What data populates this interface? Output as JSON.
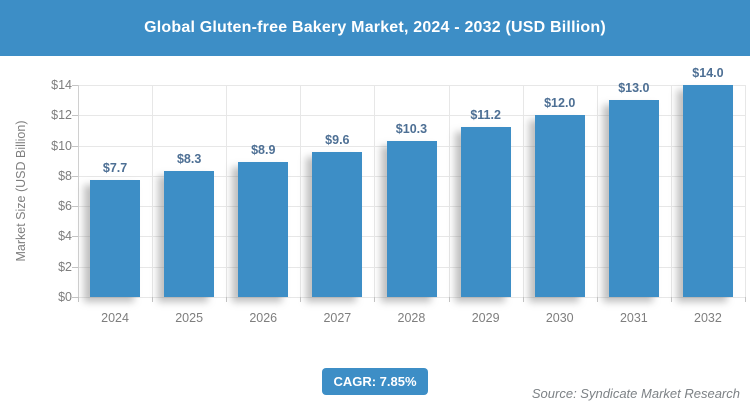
{
  "header": {
    "title": "Global Gluten-free Bakery Market, 2024 - 2032 (USD Billion)"
  },
  "chart_data": {
    "type": "bar",
    "title": "Global Gluten-free Bakery Market, 2024 - 2032 (USD Billion)",
    "categories": [
      "2024",
      "2025",
      "2026",
      "2027",
      "2028",
      "2029",
      "2030",
      "2031",
      "2032"
    ],
    "values": [
      7.7,
      8.3,
      8.9,
      9.6,
      10.3,
      11.2,
      12.0,
      13.0,
      14.0
    ],
    "value_labels": [
      "$7.7",
      "$8.3",
      "$8.9",
      "$9.6",
      "$10.3",
      "$11.2",
      "$12.0",
      "$13.0",
      "$14.0"
    ],
    "xlabel": "",
    "ylabel": "Market Size (USD Billion)",
    "ylim": [
      0,
      14
    ],
    "ytick_step": 2,
    "ytick_labels": [
      "$0",
      "$2",
      "$4",
      "$6",
      "$8",
      "$10",
      "$12",
      "$14"
    ],
    "grid": true,
    "legend": false
  },
  "footer": {
    "cagr_label": "CAGR: 7.85%",
    "source": "Source: Syndicate Market Research"
  },
  "colors": {
    "header_bg": "#3D8EC6",
    "bar_fill": "#3D8EC6",
    "value_label": "#4D6F94",
    "axis_text": "#7E7E7E",
    "gridline": "#E7E7E7",
    "axis_line": "#D0D0D0",
    "badge_bg": "#3D8EC6",
    "source_text": "#7D8286"
  }
}
